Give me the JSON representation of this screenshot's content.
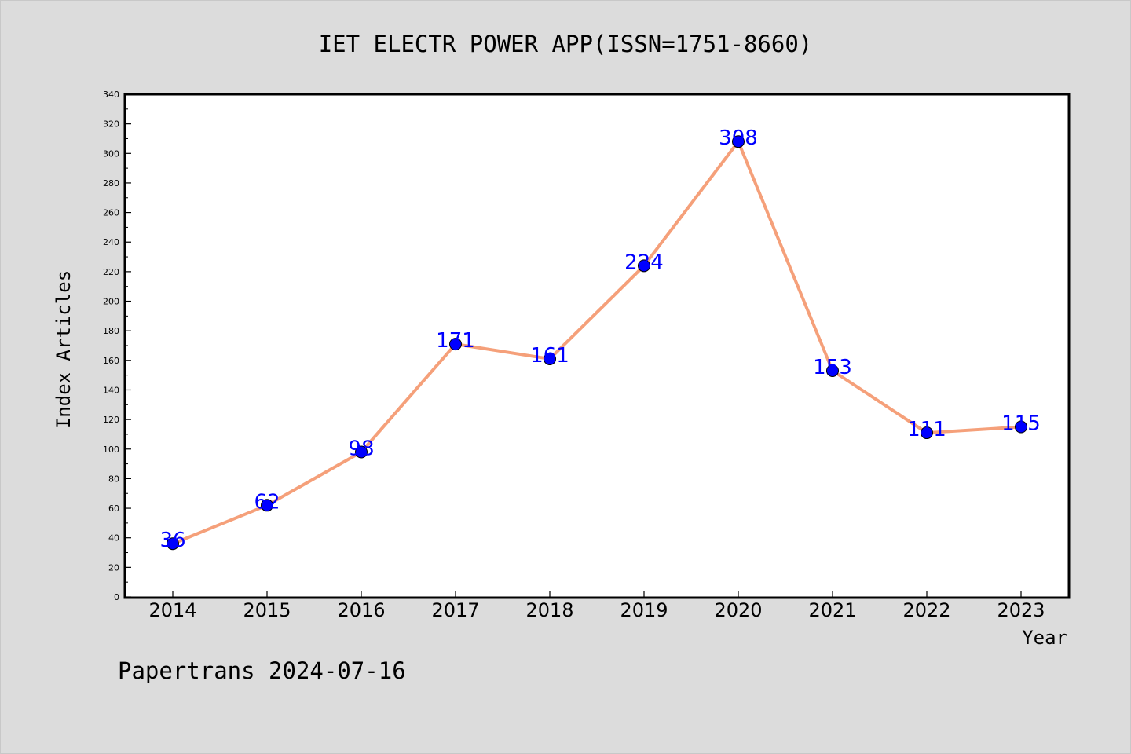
{
  "chart_data": {
    "type": "line",
    "title": "IET ELECTR POWER APP(ISSN=1751-8660)",
    "xlabel": "Year",
    "ylabel": "Index Articles",
    "footer": "Papertrans 2024-07-16",
    "categories": [
      "2014",
      "2015",
      "2016",
      "2017",
      "2018",
      "2019",
      "2020",
      "2021",
      "2022",
      "2023"
    ],
    "series": [
      {
        "values": [
          36,
          62,
          98,
          171,
          161,
          224,
          308,
          153,
          111,
          115
        ]
      }
    ],
    "ylim": [
      0,
      340
    ],
    "ytick_step": 20,
    "grid": false,
    "colors": {
      "line": "#f5a07a",
      "marker": "#0000ff",
      "label": "#0000ff",
      "plot_bg": "#ffffff",
      "page_bg": "#dcdcdc"
    }
  }
}
